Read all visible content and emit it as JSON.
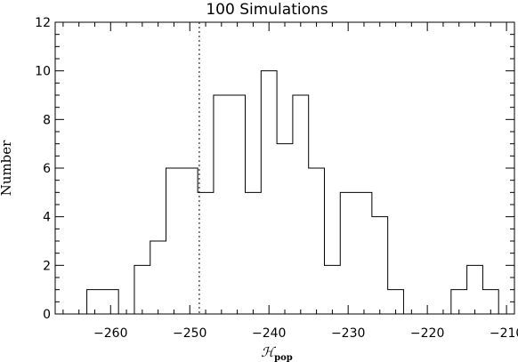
{
  "chart_data": {
    "type": "histogram",
    "title": "100 Simulations",
    "xlabel": "ℋ",
    "xlabel_subscript": "pop",
    "ylabel": "Number",
    "xlim": [
      -267,
      -209
    ],
    "ylim": [
      0,
      12
    ],
    "x_ticks": [
      -260,
      -250,
      -240,
      -230,
      -220,
      -210
    ],
    "x_tick_labels": [
      "−260",
      "−250",
      "−240",
      "−230",
      "−220",
      "−210"
    ],
    "y_ticks": [
      0,
      2,
      4,
      6,
      8,
      10,
      12
    ],
    "y_tick_labels": [
      "0",
      "2",
      "4",
      "6",
      "8",
      "10",
      "12"
    ],
    "bin_width": 2,
    "bins": [
      {
        "x0": -263,
        "x1": -261,
        "count": 1
      },
      {
        "x0": -261,
        "x1": -259,
        "count": 1
      },
      {
        "x0": -259,
        "x1": -257,
        "count": 0
      },
      {
        "x0": -257,
        "x1": -255,
        "count": 2
      },
      {
        "x0": -255,
        "x1": -253,
        "count": 3
      },
      {
        "x0": -253,
        "x1": -251,
        "count": 6
      },
      {
        "x0": -251,
        "x1": -249,
        "count": 6
      },
      {
        "x0": -249,
        "x1": -247,
        "count": 5
      },
      {
        "x0": -247,
        "x1": -245,
        "count": 9
      },
      {
        "x0": -245,
        "x1": -243,
        "count": 9
      },
      {
        "x0": -243,
        "x1": -241,
        "count": 5
      },
      {
        "x0": -241,
        "x1": -239,
        "count": 10
      },
      {
        "x0": -239,
        "x1": -237,
        "count": 7
      },
      {
        "x0": -237,
        "x1": -235,
        "count": 9
      },
      {
        "x0": -235,
        "x1": -233,
        "count": 6
      },
      {
        "x0": -233,
        "x1": -231,
        "count": 2
      },
      {
        "x0": -231,
        "x1": -229,
        "count": 5
      },
      {
        "x0": -229,
        "x1": -227,
        "count": 5
      },
      {
        "x0": -227,
        "x1": -225,
        "count": 4
      },
      {
        "x0": -225,
        "x1": -223,
        "count": 1
      },
      {
        "x0": -223,
        "x1": -221,
        "count": 0
      },
      {
        "x0": -221,
        "x1": -219,
        "count": 0
      },
      {
        "x0": -219,
        "x1": -217,
        "count": 0
      },
      {
        "x0": -217,
        "x1": -215,
        "count": 1
      },
      {
        "x0": -215,
        "x1": -213,
        "count": 2
      },
      {
        "x0": -213,
        "x1": -211,
        "count": 1
      }
    ],
    "reference_line": {
      "x": -248.8,
      "style": "dotted"
    },
    "grid": false,
    "legend": "none",
    "colors": {
      "line": "#000000",
      "background": "#ffffff"
    }
  }
}
